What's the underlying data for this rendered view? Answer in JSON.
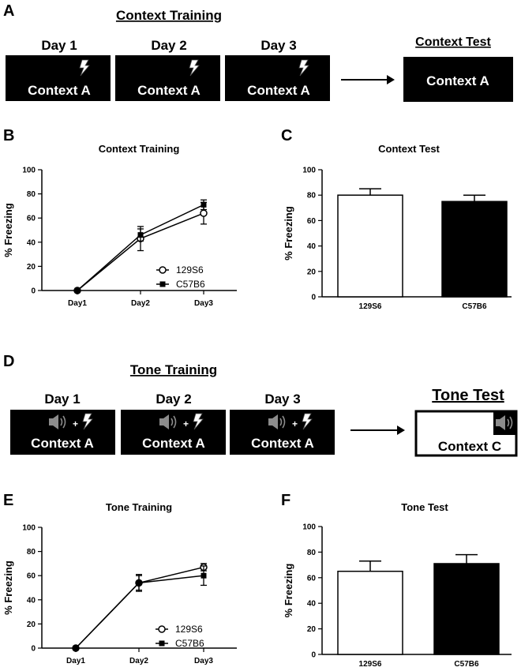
{
  "panels": {
    "a": {
      "letter": "A",
      "title": "Context Training",
      "days": [
        "Day 1",
        "Day 2",
        "Day 3"
      ],
      "box_label": "Context A",
      "test_title": "Context Test",
      "test_box_label": "Context A"
    },
    "d": {
      "letter": "D",
      "title": "Tone Training",
      "days": [
        "Day 1",
        "Day 2",
        "Day 3"
      ],
      "box_label": "Context A",
      "plus": "+",
      "test_title": "Tone Test",
      "test_box_label": "Context C"
    },
    "b_letter": "B",
    "c_letter": "C",
    "e_letter": "E",
    "f_letter": "F"
  },
  "chart_data": [
    {
      "id": "B",
      "type": "line",
      "title": "Context Training",
      "ylabel": "% Freezing",
      "xlabel": "",
      "categories": [
        "Day1",
        "Day2",
        "Day3"
      ],
      "ylim": [
        0,
        100
      ],
      "yticks": [
        0,
        20,
        40,
        60,
        80,
        100
      ],
      "series": [
        {
          "name": "129S6",
          "marker": "open-circle",
          "values": [
            0,
            43,
            64
          ],
          "errors": [
            0,
            10,
            9
          ]
        },
        {
          "name": "C57B6",
          "marker": "filled-square",
          "values": [
            0,
            46,
            71
          ],
          "errors": [
            0,
            5,
            4
          ]
        }
      ]
    },
    {
      "id": "C",
      "type": "bar",
      "title": "Context Test",
      "ylabel": "% Freezing",
      "categories": [
        "129S6",
        "C57B6"
      ],
      "values": [
        80,
        75
      ],
      "errors": [
        5,
        5
      ],
      "colors": [
        "#ffffff",
        "#000000"
      ],
      "ylim": [
        0,
        100
      ],
      "yticks": [
        0,
        20,
        40,
        60,
        80,
        100
      ]
    },
    {
      "id": "E",
      "type": "line",
      "title": "Tone Training",
      "ylabel": "% Freezing",
      "xlabel": "",
      "categories": [
        "Day1",
        "Day2",
        "Day3"
      ],
      "ylim": [
        0,
        100
      ],
      "yticks": [
        0,
        20,
        40,
        60,
        80,
        100
      ],
      "series": [
        {
          "name": "129S6",
          "marker": "open-circle",
          "values": [
            0,
            54,
            67
          ],
          "errors": [
            0,
            7,
            3
          ]
        },
        {
          "name": "C57B6",
          "marker": "filled-square",
          "values": [
            0,
            54,
            60
          ],
          "errors": [
            0,
            6,
            8
          ]
        }
      ]
    },
    {
      "id": "F",
      "type": "bar",
      "title": "Tone Test",
      "ylabel": "% Freezing",
      "categories": [
        "129S6",
        "C57B6"
      ],
      "values": [
        65,
        71
      ],
      "errors": [
        8,
        7
      ],
      "colors": [
        "#ffffff",
        "#000000"
      ],
      "ylim": [
        0,
        100
      ],
      "yticks": [
        0,
        20,
        40,
        60,
        80,
        100
      ]
    }
  ]
}
